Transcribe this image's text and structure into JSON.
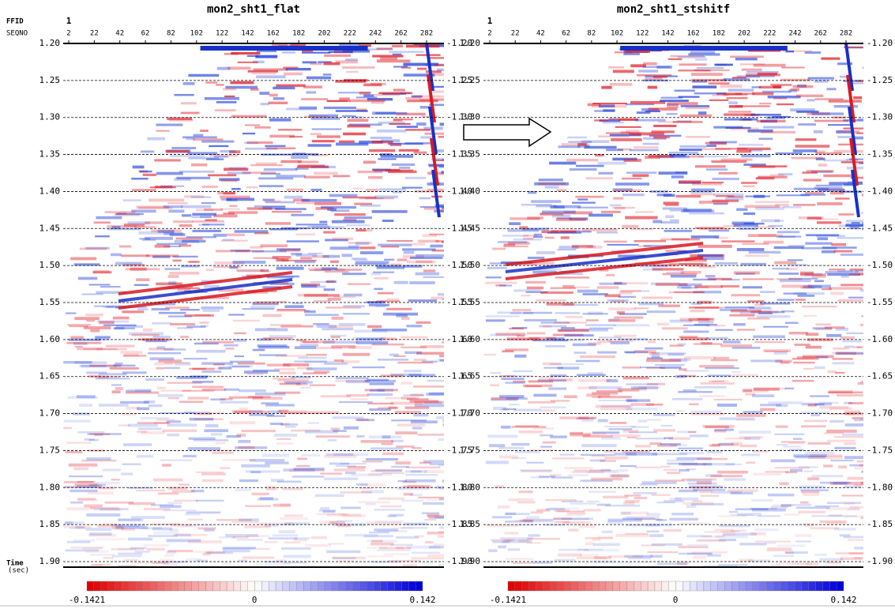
{
  "header": {
    "ffid_label": "FFID",
    "seqno_label": "SEQNO",
    "time_label": "Time",
    "time_unit": "(sec)"
  },
  "panels": [
    {
      "title": "mon2_sht1_flat",
      "ffid": "1",
      "traces": [
        2,
        22,
        42,
        62,
        82,
        102,
        122,
        142,
        162,
        182,
        202,
        222,
        242,
        262,
        282
      ],
      "times": [
        "1.20",
        "1.25",
        "1.30",
        "1.35",
        "1.40",
        "1.45",
        "1.50",
        "1.55",
        "1.60",
        "1.65",
        "1.70",
        "1.75",
        "1.80",
        "1.85",
        "1.90"
      ],
      "times_right": [
        "-1.20",
        "-1.25",
        "-1.30",
        "-1.35",
        "-1.40",
        "-1.45",
        "-1.50",
        "-1.55",
        "-1.60",
        "-1.65",
        "-1.70",
        "-1.75",
        "-1.80",
        "-1.85",
        "-1.90"
      ],
      "colorbar": {
        "min": "-0.1421",
        "mid": "0",
        "max": "0.142"
      }
    },
    {
      "title": "mon2_sht1_stshitf",
      "ffid": "1",
      "traces": [
        2,
        22,
        42,
        62,
        82,
        102,
        122,
        142,
        162,
        182,
        202,
        222,
        242,
        262,
        282
      ],
      "times": [
        "1.20",
        "1.25",
        "1.30",
        "1.35",
        "1.40",
        "1.45",
        "1.50",
        "1.55",
        "1.60",
        "1.65",
        "1.70",
        "1.75",
        "1.80",
        "1.85",
        "1.90"
      ],
      "times_right": [
        "-1.20",
        "-1.25",
        "-1.30",
        "-1.35",
        "-1.40",
        "-1.45",
        "-1.50",
        "-1.55",
        "-1.60",
        "-1.65",
        "-1.70",
        "-1.75",
        "-1.80",
        "-1.85",
        "-1.90"
      ],
      "colorbar": {
        "min": "-0.1421",
        "mid": "0",
        "max": "0.142"
      }
    }
  ]
}
